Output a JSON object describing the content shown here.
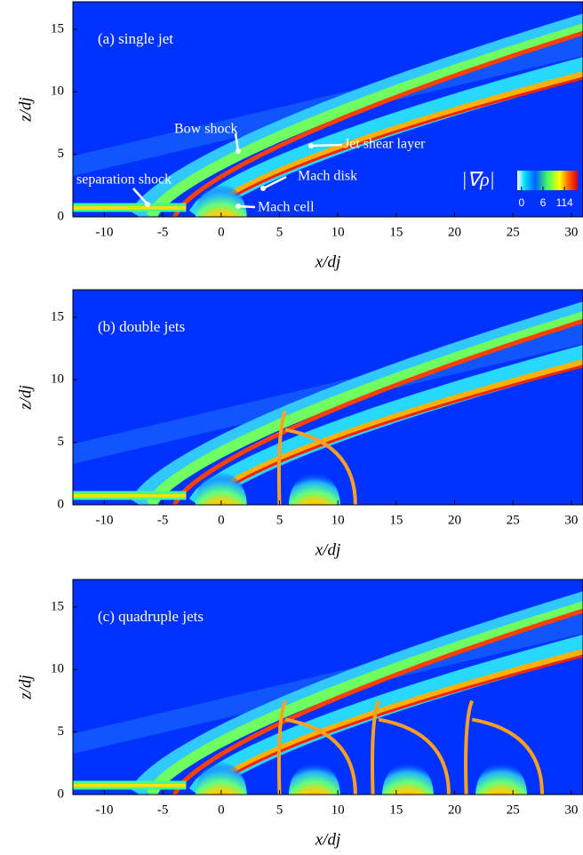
{
  "chart_data": [
    {
      "type": "contour",
      "title": "(a) single jet",
      "xlabel": "x/dj",
      "ylabel": "z/dj",
      "xlim": [
        -12.7,
        31
      ],
      "ylim": [
        0,
        17.2
      ],
      "xticks": [
        -10,
        -5,
        0,
        5,
        10,
        15,
        20,
        25,
        30
      ],
      "yticks": [
        0,
        5,
        10,
        15
      ],
      "annotations": [
        "Bow shock",
        "Jet shear layer",
        "Mach disk",
        "separation shock",
        "Mach cell"
      ],
      "colorbar": {
        "label": "|∇ρ|",
        "ticks": [
          0,
          6,
          114
        ]
      }
    },
    {
      "type": "contour",
      "title": "(b) double jets",
      "xlabel": "x/dj",
      "ylabel": "z/dj",
      "xlim": [
        -12.7,
        31
      ],
      "ylim": [
        0,
        17.2
      ],
      "xticks": [
        -10,
        -5,
        0,
        5,
        10,
        15,
        20,
        25,
        30
      ],
      "yticks": [
        0,
        5,
        10,
        15
      ]
    },
    {
      "type": "contour",
      "title": "(c) quadruple jets",
      "xlabel": "x/dj",
      "ylabel": "z/dj",
      "xlim": [
        -12.7,
        31
      ],
      "ylim": [
        0,
        17.2
      ],
      "xticks": [
        -10,
        -5,
        0,
        5,
        10,
        15,
        20,
        25,
        30
      ],
      "yticks": [
        0,
        5,
        10,
        15
      ]
    }
  ]
}
